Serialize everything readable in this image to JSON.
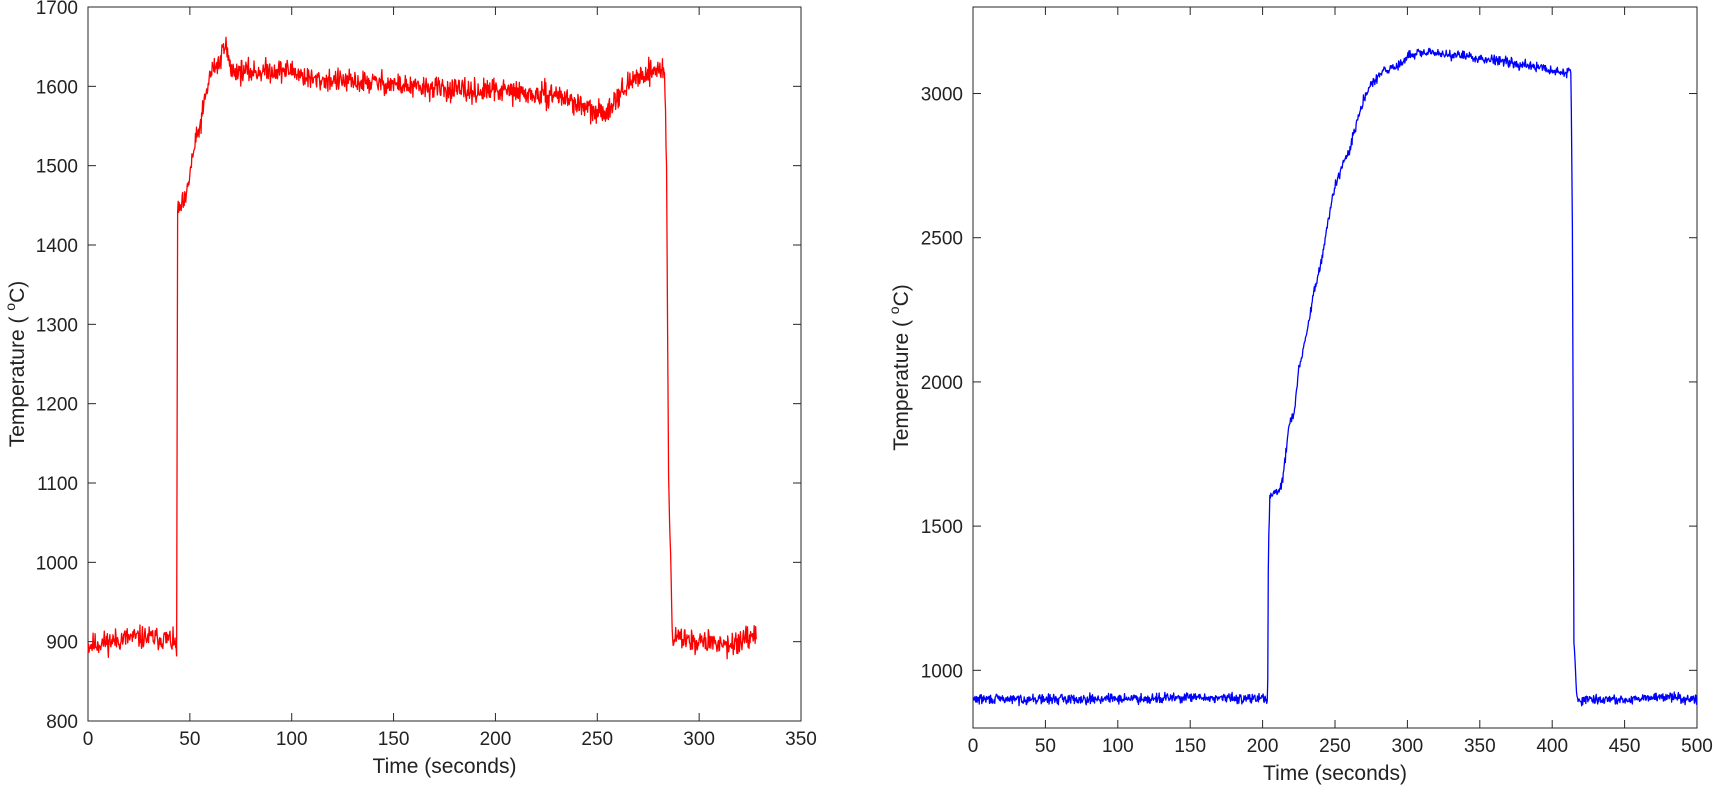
{
  "chart_data": [
    {
      "type": "line",
      "xlabel": "Time (seconds)",
      "ylabel": {
        "pre": "Temperature ( ",
        "sup": "o",
        "post": "C)"
      },
      "xlim": [
        0,
        350
      ],
      "ylim": [
        800,
        1700
      ],
      "xticks": [
        0,
        50,
        100,
        150,
        200,
        250,
        300,
        350
      ],
      "yticks": [
        800,
        900,
        1000,
        1100,
        1200,
        1300,
        1400,
        1500,
        1600,
        1700
      ],
      "grid": false,
      "color": "#ff0000",
      "noise": 12,
      "series": [
        {
          "x": [
            0,
            10,
            20,
            30,
            40,
            43.5,
            44,
            46,
            48,
            50,
            52,
            55,
            58,
            60,
            62,
            65,
            67,
            70,
            80,
            90,
            100,
            110,
            120,
            130,
            140,
            150,
            160,
            170,
            180,
            190,
            200,
            210,
            220,
            230,
            240,
            250,
            255,
            260,
            265,
            270,
            275,
            280,
            283,
            284,
            285,
            287,
            290,
            300,
            310,
            320,
            328
          ],
          "y": [
            895,
            900,
            905,
            905,
            903,
            893,
            1440,
            1450,
            1455,
            1490,
            1520,
            1550,
            1590,
            1615,
            1625,
            1630,
            1660,
            1620,
            1618,
            1620,
            1620,
            1608,
            1608,
            1605,
            1605,
            1603,
            1598,
            1598,
            1595,
            1593,
            1595,
            1593,
            1588,
            1590,
            1578,
            1565,
            1570,
            1590,
            1600,
            1612,
            1618,
            1622,
            1620,
            1500,
            1100,
            905,
            905,
            900,
            898,
            898,
            905
          ]
        }
      ]
    },
    {
      "type": "line",
      "xlabel": "Time (seconds)",
      "ylabel": {
        "pre": "Temperature ( ",
        "sup": "o",
        "post": "C)"
      },
      "xlim": [
        0,
        500
      ],
      "ylim": [
        800,
        3300
      ],
      "xticks": [
        0,
        50,
        100,
        150,
        200,
        250,
        300,
        350,
        400,
        450,
        500
      ],
      "yticks": [
        1000,
        1500,
        2000,
        2500,
        3000
      ],
      "grid": false,
      "color": "#0000ff",
      "noise": 14,
      "series": [
        {
          "x": [
            0,
            50,
            100,
            150,
            200,
            203.5,
            204,
            205,
            208,
            212,
            215,
            218,
            222,
            225,
            230,
            235,
            240,
            245,
            250,
            255,
            260,
            265,
            270,
            275,
            280,
            285,
            290,
            295,
            300,
            310,
            320,
            330,
            340,
            350,
            360,
            370,
            380,
            390,
            400,
            410,
            413,
            414,
            415,
            417,
            420,
            430,
            440,
            450,
            460,
            470,
            480,
            490,
            500
          ],
          "y": [
            900,
            900,
            902,
            905,
            902,
            900,
            1420,
            1600,
            1620,
            1620,
            1700,
            1850,
            1900,
            2050,
            2150,
            2300,
            2400,
            2550,
            2680,
            2750,
            2800,
            2900,
            2980,
            3030,
            3060,
            3080,
            3090,
            3100,
            3130,
            3140,
            3140,
            3135,
            3130,
            3120,
            3120,
            3110,
            3100,
            3090,
            3080,
            3070,
            3080,
            2500,
            1100,
            900,
            900,
            898,
            900,
            895,
            900,
            905,
            910,
            905,
            900
          ]
        }
      ]
    }
  ]
}
